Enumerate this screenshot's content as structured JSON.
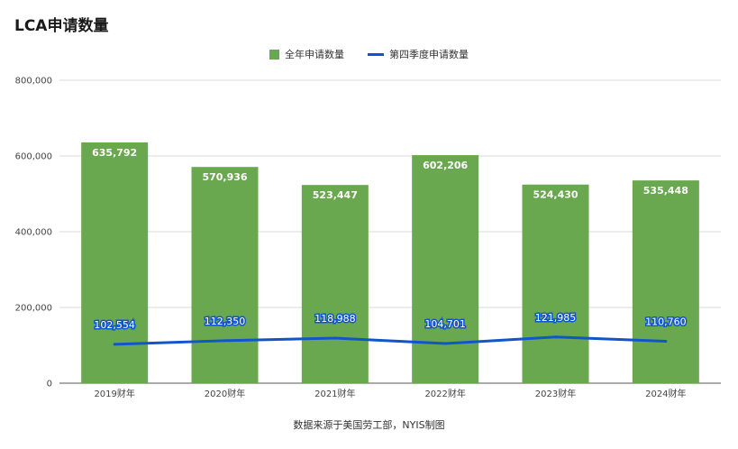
{
  "title": "LCA申请数量",
  "legend": {
    "bars": "全年申请数量",
    "line": "第四季度申请数量"
  },
  "source": "数据来源于美国劳工部，NYIS制图",
  "colors": {
    "bar": "#6aa84f",
    "line": "#1155cc"
  },
  "chart_data": {
    "type": "bar",
    "title": "LCA申请数量",
    "categories": [
      "2019财年",
      "2020财年",
      "2021财年",
      "2022财年",
      "2023财年",
      "2024财年"
    ],
    "series": [
      {
        "name": "全年申请数量",
        "type": "bar",
        "values": [
          635792,
          570936,
          523447,
          602206,
          524430,
          535448
        ],
        "labels": [
          "635,792",
          "570,936",
          "523,447",
          "602,206",
          "524,430",
          "535,448"
        ]
      },
      {
        "name": "第四季度申请数量",
        "type": "line",
        "values": [
          102554,
          112350,
          118988,
          104701,
          121985,
          110760
        ],
        "labels": [
          "102,554",
          "112,350",
          "118,988",
          "104,701",
          "121,985",
          "110,760"
        ]
      }
    ],
    "ylim": [
      0,
      800000
    ],
    "yticks": [
      0,
      200000,
      400000,
      600000,
      800000
    ],
    "ytick_labels": [
      "0",
      "200,000",
      "400,000",
      "600,000",
      "800,000"
    ],
    "grid": true,
    "legend_position": "top-center"
  }
}
